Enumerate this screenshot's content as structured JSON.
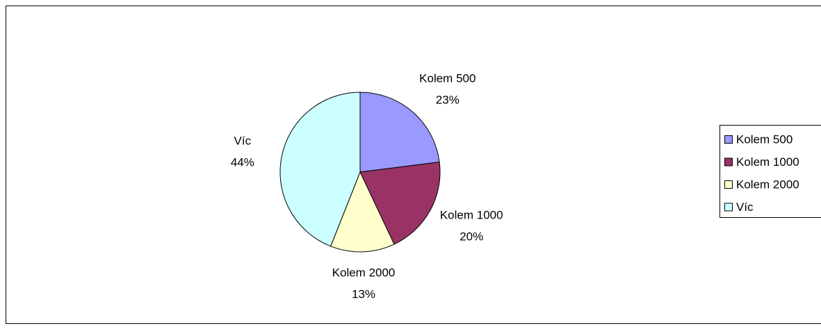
{
  "chart_data": {
    "type": "pie",
    "categories": [
      "Kolem 500",
      "Kolem 1000",
      "Kolem 2000",
      "Víc"
    ],
    "values": [
      23,
      20,
      13,
      44
    ],
    "value_labels": [
      "23%",
      "20%",
      "13%",
      "44%"
    ],
    "colors": [
      "#9999ff",
      "#993366",
      "#ffffcc",
      "#ccffff"
    ],
    "legend": "right"
  }
}
